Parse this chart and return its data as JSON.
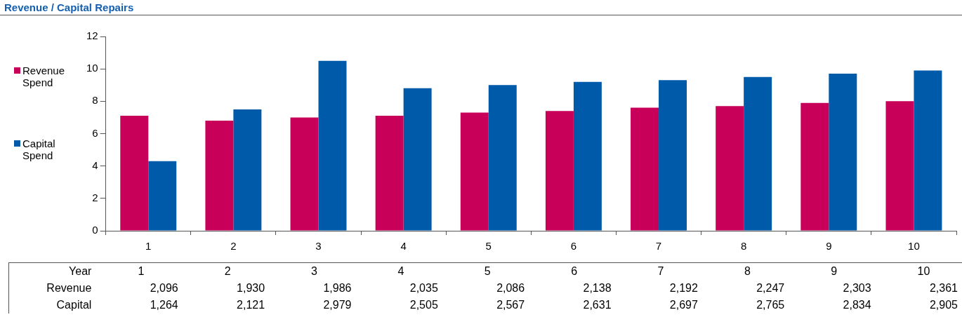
{
  "chart_data": [
    {
      "type": "bar",
      "title": "Revenue / Capital Repairs",
      "categories": [
        "1",
        "2",
        "3",
        "4",
        "5",
        "6",
        "7",
        "8",
        "9",
        "10"
      ],
      "series": [
        {
          "name": "Revenue Spend",
          "color": "#c8005a",
          "values": [
            7.1,
            6.8,
            7.0,
            7.1,
            7.3,
            7.4,
            7.6,
            7.7,
            7.9,
            8.0
          ]
        },
        {
          "name": "Capital Spend",
          "color": "#005aaa",
          "values": [
            4.3,
            7.5,
            10.5,
            8.8,
            9.0,
            9.2,
            9.3,
            9.5,
            9.7,
            9.9
          ]
        }
      ],
      "ylim": [
        0,
        12
      ],
      "yticks": [
        0,
        2,
        4,
        6,
        8,
        10,
        12
      ],
      "grid": false,
      "legend": "left"
    },
    {
      "type": "heatmap",
      "xlabel": "Year",
      "categories": [
        "1",
        "2",
        "3",
        "4",
        "5",
        "6",
        "7",
        "8",
        "9",
        "10"
      ],
      "y_categories": [
        "Revenue",
        "Capital"
      ],
      "cells": [
        [
          2096,
          1930,
          1986,
          2035,
          2086,
          2138,
          2192,
          2247,
          2303,
          2361
        ],
        [
          1264,
          2121,
          2979,
          2505,
          2567,
          2631,
          2697,
          2765,
          2834,
          2905
        ]
      ],
      "cell_labels": [
        [
          "2,096",
          "1,930",
          "1,986",
          "2,035",
          "2,086",
          "2,138",
          "2,192",
          "2,247",
          "2,303",
          "2,361"
        ],
        [
          "1,264",
          "2,121",
          "2,979",
          "2,505",
          "2,567",
          "2,631",
          "2,697",
          "2,765",
          "2,834",
          "2,905"
        ]
      ]
    }
  ]
}
